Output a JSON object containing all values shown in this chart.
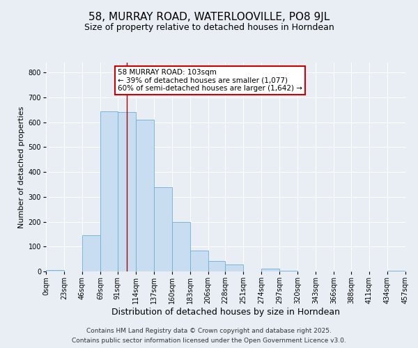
{
  "title": "58, MURRAY ROAD, WATERLOOVILLE, PO8 9JL",
  "subtitle": "Size of property relative to detached houses in Horndean",
  "xlabel": "Distribution of detached houses by size in Horndean",
  "ylabel": "Number of detached properties",
  "bar_color": "#c8ddf0",
  "bar_edge_color": "#6baed6",
  "background_color": "#e8eef4",
  "grid_color": "#ffffff",
  "annotation_box_color": "#cc0000",
  "vline_color": "#aa0000",
  "vline_x": 103,
  "bin_edges": [
    0,
    23,
    46,
    69,
    91,
    114,
    137,
    160,
    183,
    206,
    228,
    251,
    274,
    297,
    320,
    343,
    366,
    388,
    411,
    434,
    457
  ],
  "bin_labels": [
    "0sqm",
    "23sqm",
    "46sqm",
    "69sqm",
    "91sqm",
    "114sqm",
    "137sqm",
    "160sqm",
    "183sqm",
    "206sqm",
    "228sqm",
    "251sqm",
    "274sqm",
    "297sqm",
    "320sqm",
    "343sqm",
    "366sqm",
    "388sqm",
    "411sqm",
    "434sqm",
    "457sqm"
  ],
  "counts": [
    5,
    0,
    145,
    645,
    640,
    610,
    338,
    200,
    83,
    42,
    27,
    0,
    11,
    3,
    0,
    0,
    0,
    0,
    0,
    3
  ],
  "ylim": [
    0,
    840
  ],
  "yticks": [
    0,
    100,
    200,
    300,
    400,
    500,
    600,
    700,
    800
  ],
  "annotation_title": "58 MURRAY ROAD: 103sqm",
  "annotation_line1": "← 39% of detached houses are smaller (1,077)",
  "annotation_line2": "60% of semi-detached houses are larger (1,642) →",
  "footer1": "Contains HM Land Registry data © Crown copyright and database right 2025.",
  "footer2": "Contains public sector information licensed under the Open Government Licence v3.0.",
  "title_fontsize": 11,
  "subtitle_fontsize": 9,
  "xlabel_fontsize": 9,
  "ylabel_fontsize": 8,
  "tick_fontsize": 7,
  "annotation_fontsize": 7.5,
  "footer_fontsize": 6.5
}
